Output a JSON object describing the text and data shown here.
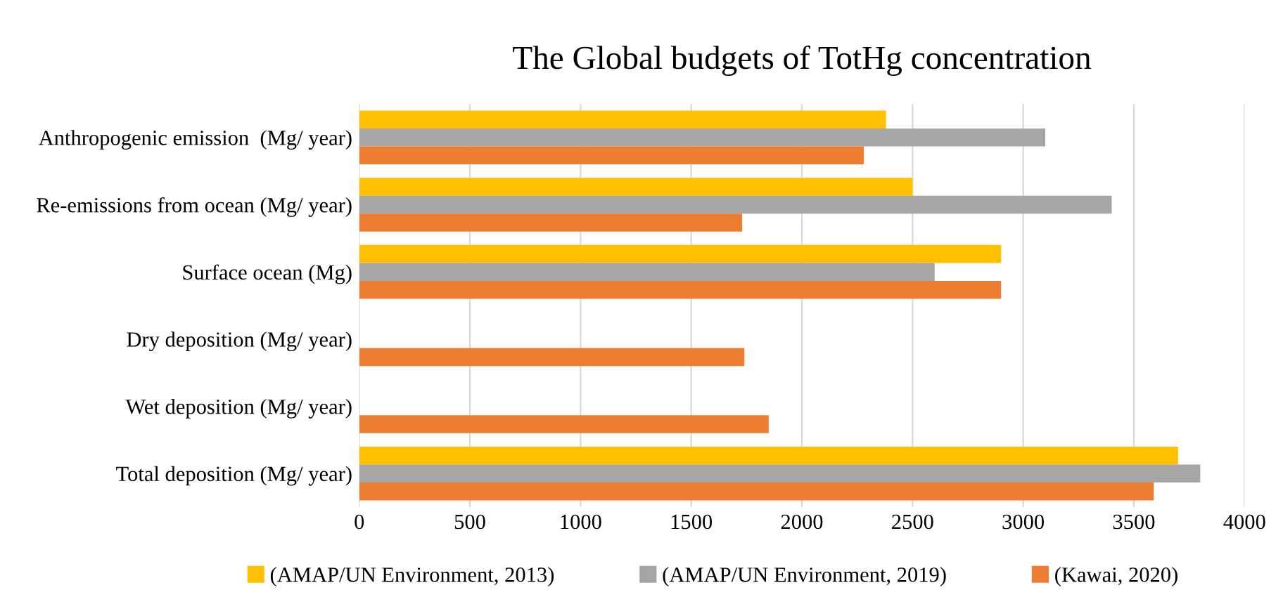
{
  "chart_data": {
    "type": "bar",
    "orientation": "horizontal",
    "title": "The Global budgets of TotHg concentration",
    "categories": [
      "Anthropogenic emission  (Mg/ year)",
      "Re-emissions from ocean (Mg/ year)",
      "Surface ocean (Mg)",
      "Dry deposition (Mg/ year)",
      "Wet deposition (Mg/ year)",
      "Total deposition (Mg/ year)"
    ],
    "series": [
      {
        "name": "(AMAP/UN Environment, 2013)",
        "color": "#ffc000",
        "values": [
          2380,
          2500,
          2900,
          null,
          null,
          3700
        ]
      },
      {
        "name": "(AMAP/UN Environment, 2019)",
        "color": "#a5a5a5",
        "values": [
          3100,
          3400,
          2600,
          null,
          null,
          3800
        ]
      },
      {
        "name": "(Kawai, 2020)",
        "color": "#ed7d31",
        "values": [
          2280,
          1730,
          2900,
          1740,
          1850,
          3590
        ]
      }
    ],
    "xlim": [
      0,
      4000
    ],
    "xticks": [
      0,
      500,
      1000,
      1500,
      2000,
      2500,
      3000,
      3500,
      4000
    ],
    "grid": "x",
    "legend": "bottom"
  }
}
